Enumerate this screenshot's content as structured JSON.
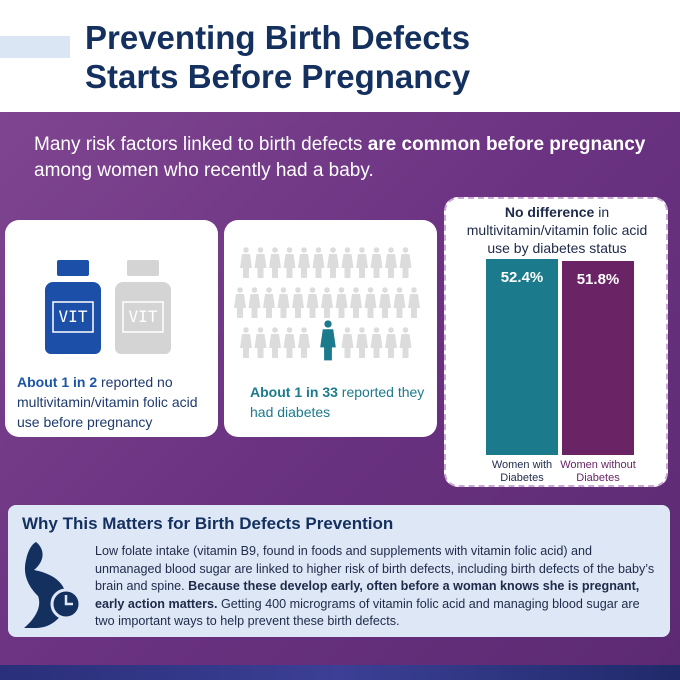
{
  "header": {
    "title_lines": [
      "Preventing Birth Defects",
      "Starts Before Pregnancy"
    ]
  },
  "intro": {
    "parts": [
      "Many risk factors linked to birth defects ",
      "are common before pregnancy",
      " among women who recently had a baby."
    ]
  },
  "cards": [
    {
      "bottle_labels": [
        "VIT",
        "VIT"
      ],
      "bold": "About 1 in 2",
      "text": " reported no multivitamin/vitamin folic acid use before pregnancy"
    },
    {
      "bold": "About 1 in 33",
      "text": " reported they had diabetes"
    }
  ],
  "chart_data": {
    "type": "bar",
    "title_parts": [
      "No difference",
      " in multivitamin/vitamin folic acid use by diabetes status"
    ],
    "categories": [
      "Women with Diabetes",
      "Women without Diabetes"
    ],
    "values": [
      52.4,
      51.8
    ],
    "value_labels": [
      "52.4%",
      "51.8%"
    ],
    "colors": [
      "#1b7a8c",
      "#6a2465"
    ]
  },
  "why": {
    "title": "Why This Matters for Birth Defects Prevention",
    "body_parts": [
      "Low folate intake (vitamin B9, found in foods and supplements with vitamin folic acid) and unmanaged blood sugar are linked to higher risk of birth defects, including birth defects of the baby’s brain and spine. ",
      "Because these develop early, often before a woman knows she is pregnant, early action matters.",
      " Getting 400 micrograms of vitamin folic acid and managing blood sugar are two important ways to help prevent these birth defects."
    ]
  }
}
